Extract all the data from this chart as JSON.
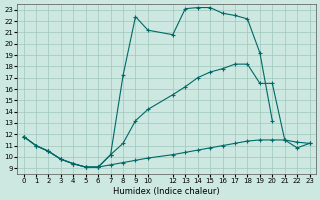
{
  "xlabel": "Humidex (Indice chaleur)",
  "bg_color": "#cce8e0",
  "grid_color": "#a0c8bc",
  "line_color": "#006868",
  "xlim": [
    -0.5,
    23.5
  ],
  "ylim": [
    8.5,
    23.5
  ],
  "xticks": [
    0,
    1,
    2,
    3,
    4,
    5,
    6,
    7,
    8,
    9,
    10,
    12,
    13,
    14,
    15,
    16,
    17,
    18,
    19,
    20,
    21,
    22,
    23
  ],
  "yticks": [
    9,
    10,
    11,
    12,
    13,
    14,
    15,
    16,
    17,
    18,
    19,
    20,
    21,
    22,
    23
  ],
  "line_a_x": [
    0,
    1,
    2,
    3,
    4,
    5,
    6,
    7,
    8,
    9,
    10,
    12,
    13,
    14,
    15,
    16,
    17,
    18,
    19,
    20,
    21,
    22,
    23
  ],
  "line_a_y": [
    11.8,
    11.0,
    10.5,
    9.8,
    9.4,
    9.1,
    9.1,
    9.3,
    9.5,
    9.7,
    9.9,
    10.2,
    10.4,
    10.6,
    10.8,
    11.0,
    11.2,
    11.4,
    11.5,
    11.5,
    11.5,
    11.3,
    11.2
  ],
  "line_b_x": [
    0,
    1,
    2,
    3,
    4,
    5,
    6,
    7,
    8,
    9,
    10,
    12,
    13,
    14,
    15,
    16,
    17,
    18,
    19,
    20
  ],
  "line_b_y": [
    11.8,
    11.0,
    10.5,
    9.8,
    9.4,
    9.1,
    9.1,
    10.2,
    17.2,
    22.4,
    21.2,
    20.8,
    23.1,
    23.2,
    23.2,
    22.7,
    22.5,
    22.2,
    19.2,
    13.2
  ],
  "line_c_x": [
    0,
    1,
    2,
    3,
    4,
    5,
    6,
    7,
    8,
    9,
    10,
    12,
    13,
    14,
    15,
    16,
    17,
    18,
    19,
    20,
    21,
    22,
    23
  ],
  "line_c_y": [
    11.8,
    11.0,
    10.5,
    9.8,
    9.4,
    9.1,
    9.1,
    10.2,
    11.2,
    13.2,
    14.2,
    15.5,
    16.2,
    17.0,
    17.5,
    17.8,
    18.2,
    18.2,
    16.5,
    16.5,
    11.5,
    10.8,
    11.2
  ]
}
